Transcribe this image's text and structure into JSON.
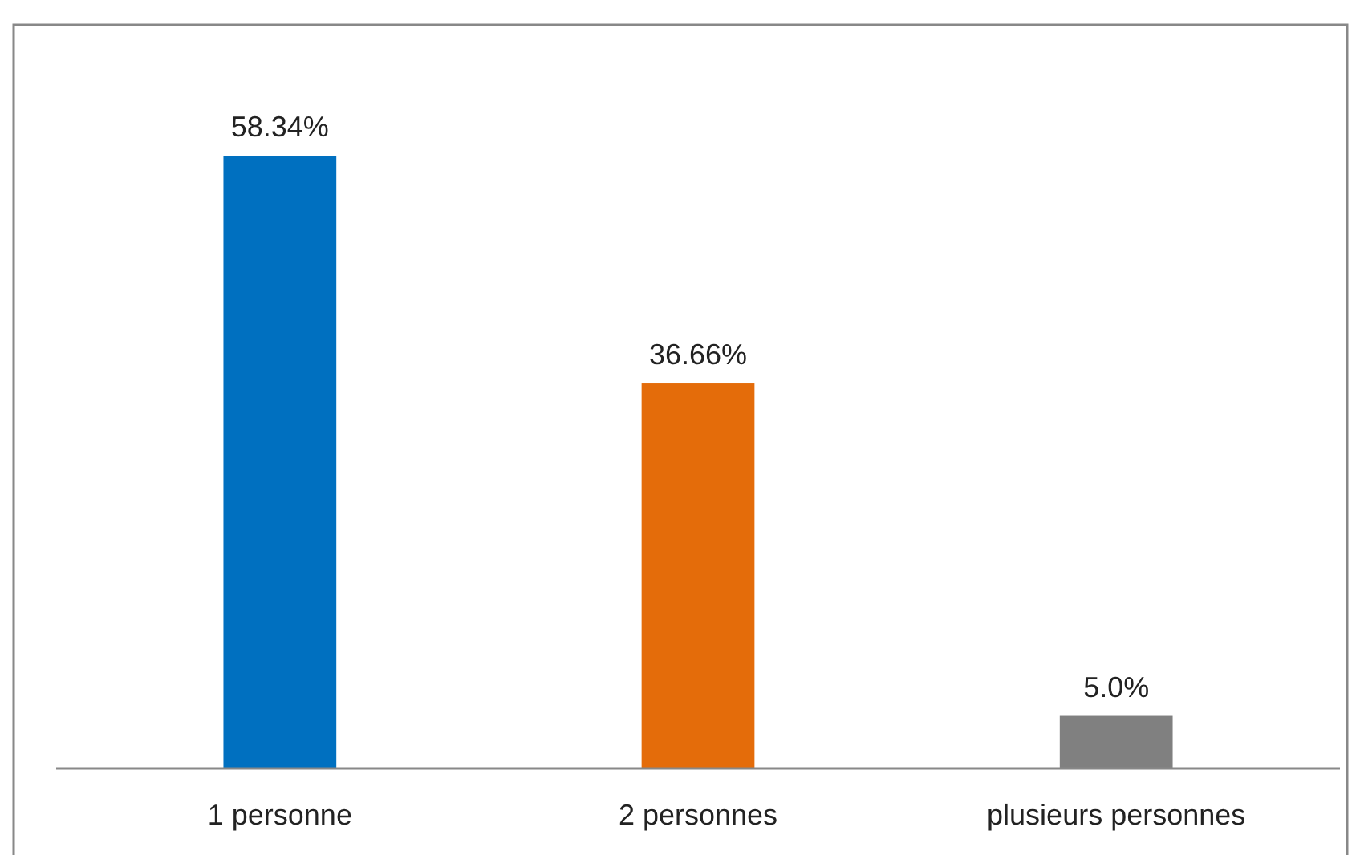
{
  "chart_data": {
    "type": "bar",
    "categories": [
      "1 personne",
      "2 personnes",
      "plusieurs personnes"
    ],
    "values": [
      58.34,
      36.66,
      5.0
    ],
    "colors": [
      "#0070c0",
      "#e46c0a",
      "#808080"
    ],
    "value_labels": [
      "58.34%",
      "36.66%",
      "5.0%"
    ]
  }
}
